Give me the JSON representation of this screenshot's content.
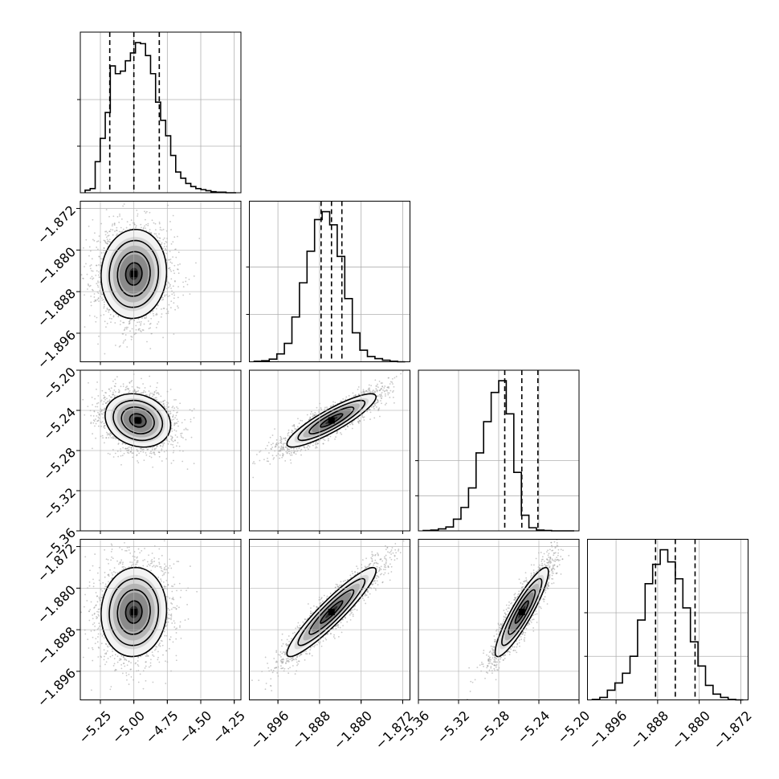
{
  "chart_data": {
    "type": "corner",
    "dimensions": 4,
    "parameters": [
      {
        "name": "",
        "range": [
          -5.4,
          -4.2
        ],
        "ticks": [
          -5.25,
          -5.0,
          -4.75,
          -4.5,
          -4.25
        ],
        "tick_labels": [
          "−5.25",
          "−5.00",
          "−4.75",
          "−4.50",
          "−4.25"
        ],
        "median": -5.0,
        "q16": -5.18,
        "q84": -4.81
      },
      {
        "name": "",
        "range": [
          -1.9015,
          -1.8706
        ],
        "ticks": [
          -1.896,
          -1.888,
          -1.88,
          -1.872
        ],
        "tick_labels": [
          "−1.896",
          "−1.888",
          "−1.880",
          "−1.872"
        ],
        "median": -1.8857,
        "q16": -1.8877,
        "q84": -1.8837
      },
      {
        "name": "",
        "range": [
          -5.36,
          -5.2
        ],
        "ticks": [
          -5.36,
          -5.32,
          -5.28,
          -5.24,
          -5.2
        ],
        "tick_labels": [
          "−5.36",
          "−5.32",
          "−5.28",
          "−5.24",
          "−5.20"
        ],
        "median": -5.257,
        "q16": -5.274,
        "q84": -5.241
      },
      {
        "name": "",
        "range": [
          -1.9015,
          -1.8706
        ],
        "ticks": [
          -1.896,
          -1.888,
          -1.88,
          -1.872
        ],
        "tick_labels": [
          "−1.896",
          "−1.888",
          "−1.880",
          "−1.872"
        ],
        "median": -1.8846,
        "q16": -1.8884,
        "q84": -1.8808
      }
    ],
    "histograms": [
      {
        "bins": 30,
        "counts": [
          5,
          8,
          60,
          105,
          155,
          245,
          230,
          235,
          255,
          270,
          290,
          288,
          265,
          230,
          175,
          140,
          110,
          72,
          40,
          28,
          18,
          12,
          8,
          6,
          4,
          2,
          1,
          1,
          0,
          0
        ]
      },
      {
        "bins": 20,
        "counts": [
          1,
          2,
          5,
          15,
          35,
          85,
          150,
          210,
          270,
          285,
          260,
          200,
          120,
          55,
          22,
          10,
          6,
          3,
          1,
          0
        ]
      },
      {
        "bins": 20,
        "counts": [
          1,
          2,
          5,
          10,
          30,
          60,
          110,
          200,
          280,
          355,
          385,
          300,
          150,
          40,
          8,
          2,
          1,
          0,
          0,
          0
        ]
      },
      {
        "bins": 20,
        "counts": [
          1,
          5,
          20,
          35,
          55,
          90,
          165,
          240,
          280,
          310,
          285,
          250,
          190,
          120,
          70,
          30,
          12,
          5,
          1,
          0
        ]
      }
    ],
    "pairs": [
      {
        "row": 1,
        "col": 0,
        "center": [
          -5.0,
          -1.8846
        ],
        "sigma": [
          0.12,
          0.0042
        ],
        "corr": 0.05
      },
      {
        "row": 2,
        "col": 0,
        "center": [
          -4.97,
          -5.25
        ],
        "sigma": [
          0.12,
          0.013
        ],
        "corr": -0.18
      },
      {
        "row": 2,
        "col": 1,
        "center": [
          -1.8857,
          -5.25
        ],
        "sigma": [
          0.0042,
          0.013
        ],
        "corr": 0.88
      },
      {
        "row": 3,
        "col": 0,
        "center": [
          -5.0,
          -1.8846
        ],
        "sigma": [
          0.12,
          0.0042
        ],
        "corr": 0.05
      },
      {
        "row": 3,
        "col": 1,
        "center": [
          -1.8857,
          -1.8846
        ],
        "sigma": [
          0.0042,
          0.0042
        ],
        "corr": 0.93
      },
      {
        "row": 3,
        "col": 2,
        "center": [
          -5.257,
          -1.8846
        ],
        "sigma": [
          0.013,
          0.0042
        ],
        "corr": 0.9
      }
    ],
    "contour_levels": [
      0.5,
      1.0,
      1.5,
      2.0
    ],
    "grid": true,
    "colors": {
      "line": "#000000",
      "grid": "#b0b0b0",
      "points": "#9a9a9a",
      "fill_dark": "#000000",
      "fill_light": "#ffffff"
    }
  }
}
